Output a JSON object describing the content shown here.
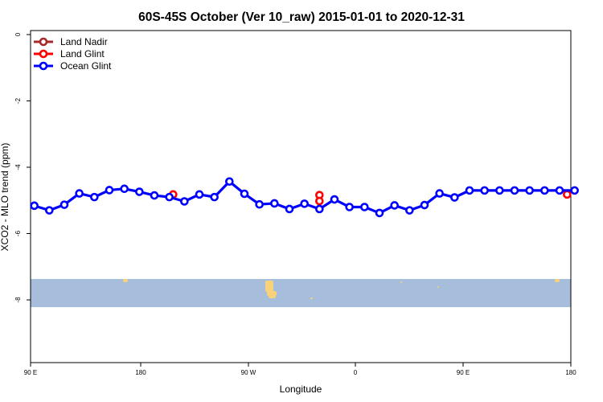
{
  "chart_data": {
    "type": "line",
    "title": "60S-45S October (Ver 10_raw)   2015-01-01 to 2020-12-31",
    "xlabel": "Longitude",
    "ylabel": "XCO2 - MLO trend (ppm)",
    "x_tick_labels": [
      "90 E",
      "180",
      "90 W",
      "0",
      "90 E",
      "180"
    ],
    "y_tick_labels": [
      "0",
      "-2",
      "-4",
      "-6",
      "-8"
    ],
    "ylim": [
      -10,
      0
    ],
    "legend": {
      "placement": "top-left"
    },
    "series": [
      {
        "name": "Land Nadir",
        "color": "#a52a2a",
        "x": [],
        "y": []
      },
      {
        "name": "Land Glint",
        "color": "#ff0000",
        "x": [
          185,
          282.5,
          282.5,
          447.5
        ],
        "y": [
          -4.82,
          -4.84,
          -5.02,
          -4.82
        ]
      },
      {
        "name": "Ocean Glint",
        "color": "#0000ff",
        "x": [
          92.5,
          102.5,
          112.5,
          122.5,
          132.5,
          142.5,
          152.5,
          162.5,
          172.5,
          182.5,
          192.5,
          202.5,
          212.5,
          222.5,
          232.5,
          242.5,
          252.5,
          262.5,
          272.5,
          282.5,
          292.5,
          302.5,
          312.5,
          322.5,
          332.5,
          342.5,
          352.5,
          362.5,
          372.5,
          382.5,
          392.5,
          402.5,
          412.5,
          422.5,
          432.5,
          442.5,
          452.5
        ],
        "y": [
          -5.16,
          -5.3,
          -5.13,
          -4.79,
          -4.9,
          -4.69,
          -4.65,
          -4.74,
          -4.85,
          -4.9,
          -5.03,
          -4.82,
          -4.9,
          -4.43,
          -4.8,
          -5.12,
          -5.09,
          -5.26,
          -5.1,
          -5.26,
          -4.97,
          -5.2,
          -5.2,
          -5.38,
          -5.15,
          -5.3,
          -5.14,
          -4.79,
          -4.91,
          -4.7,
          -4.7,
          -4.7,
          -4.7,
          -4.7,
          -4.7,
          -4.7,
          -4.7
        ]
      }
    ]
  },
  "map_strip": {
    "ocean_color": "#a6bddb",
    "land_color": "#f7d27a"
  }
}
